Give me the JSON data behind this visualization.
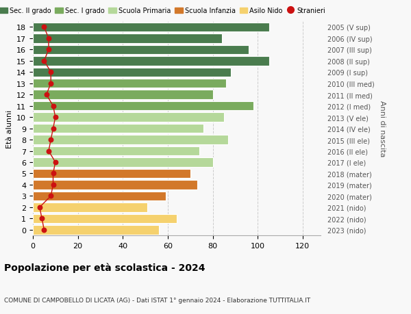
{
  "ages": [
    18,
    17,
    16,
    15,
    14,
    13,
    12,
    11,
    10,
    9,
    8,
    7,
    6,
    5,
    4,
    3,
    2,
    1,
    0
  ],
  "values": [
    105,
    84,
    96,
    105,
    88,
    86,
    80,
    98,
    85,
    76,
    87,
    74,
    80,
    70,
    73,
    59,
    51,
    64,
    56
  ],
  "stranieri": [
    5,
    7,
    7,
    5,
    8,
    8,
    6,
    9,
    10,
    9,
    8,
    7,
    10,
    9,
    9,
    8,
    3,
    4,
    5
  ],
  "right_labels": [
    "2005 (V sup)",
    "2006 (IV sup)",
    "2007 (III sup)",
    "2008 (II sup)",
    "2009 (I sup)",
    "2010 (III med)",
    "2011 (II med)",
    "2012 (I med)",
    "2013 (V ele)",
    "2014 (IV ele)",
    "2015 (III ele)",
    "2016 (II ele)",
    "2017 (I ele)",
    "2018 (mater)",
    "2019 (mater)",
    "2020 (mater)",
    "2021 (nido)",
    "2022 (nido)",
    "2023 (nido)"
  ],
  "bar_colors": [
    "#4a7c4e",
    "#4a7c4e",
    "#4a7c4e",
    "#4a7c4e",
    "#4a7c4e",
    "#7aab5e",
    "#7aab5e",
    "#7aab5e",
    "#b5d89a",
    "#b5d89a",
    "#b5d89a",
    "#b5d89a",
    "#b5d89a",
    "#d2782a",
    "#d2782a",
    "#d2782a",
    "#f5d16e",
    "#f5d16e",
    "#f5d16e"
  ],
  "legend_labels": [
    "Sec. II grado",
    "Sec. I grado",
    "Scuola Primaria",
    "Scuola Infanzia",
    "Asilo Nido",
    "Stranieri"
  ],
  "legend_colors": [
    "#4a7c4e",
    "#7aab5e",
    "#b5d89a",
    "#d2782a",
    "#f5d16e",
    "#cc1111"
  ],
  "title_bold": "Popolazione per età scolastica - 2024",
  "subtitle": "COMUNE DI CAMPOBELLO DI LICATA (AG) - Dati ISTAT 1° gennaio 2024 - Elaborazione TUTTITALIA.IT",
  "ylabel": "Età alunni",
  "right_ylabel": "Anni di nascita",
  "stranieri_color": "#cc1111",
  "background_color": "#f8f8f8",
  "grid_color": "#cccccc"
}
